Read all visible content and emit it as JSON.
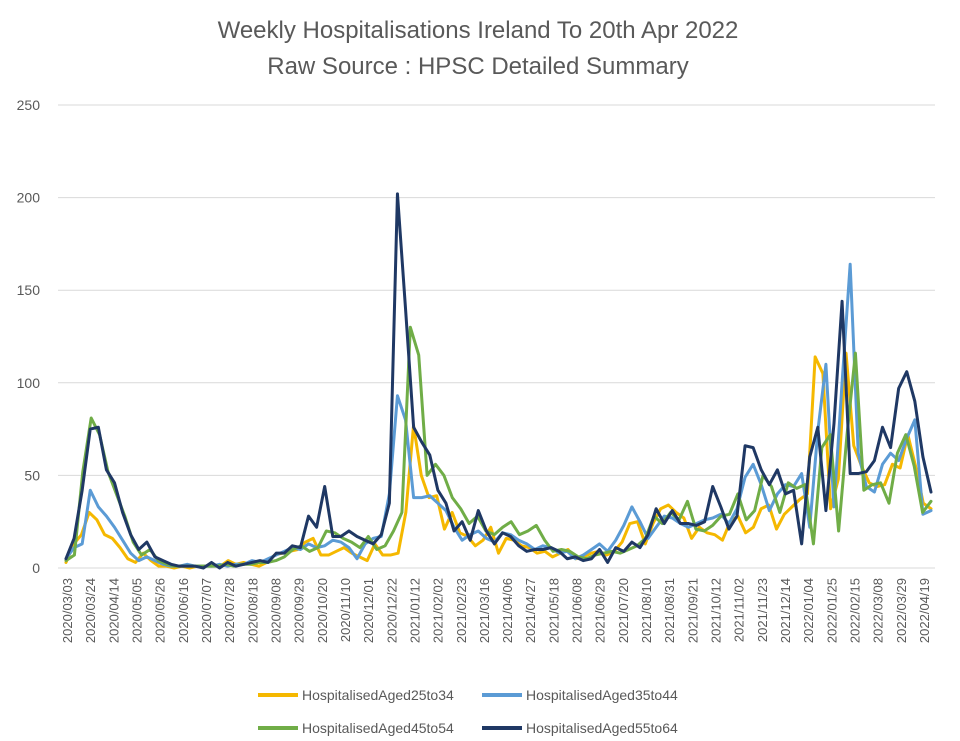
{
  "chart_data": {
    "type": "line",
    "title": "Weekly Hospitalisations Ireland To 20th Apr 2022",
    "subtitle": "Raw Source : HPSC Detailed Summary",
    "xlabel": "",
    "ylabel": "",
    "ylim": [
      0,
      250
    ],
    "y_ticks": [
      0,
      50,
      100,
      150,
      200,
      250
    ],
    "grid": true,
    "legend_position": "bottom",
    "x_tick_labels": [
      "2020/03/03",
      "2020/03/24",
      "2020/04/14",
      "2020/05/05",
      "2020/05/26",
      "2020/06/16",
      "2020/07/07",
      "2020/07/28",
      "2020/08/18",
      "2020/09/08",
      "2020/09/29",
      "2020/10/20",
      "2020/11/10",
      "2020/12/01",
      "2020/12/22",
      "2021/01/12",
      "2021/02/02",
      "2021/02/23",
      "2021/03/16",
      "2021/04/06",
      "2021/04/27",
      "2021/05/18",
      "2021/06/08",
      "2021/06/29",
      "2021/07/20",
      "2021/08/10",
      "2021/08/31",
      "2021/09/21",
      "2021/10/12",
      "2021/11/02",
      "2021/11/23",
      "2021/12/14",
      "2022/01/04",
      "2022/01/25",
      "2022/02/15",
      "2022/03/08",
      "2022/03/29",
      "2022/04/19"
    ],
    "series": [
      {
        "name": "HospitalisedAged25to34",
        "color": "#f5b800",
        "values": [
          3,
          13,
          18,
          30,
          26,
          18,
          16,
          11,
          5,
          3,
          8,
          4,
          1,
          1,
          0,
          1,
          0,
          1,
          1,
          2,
          1,
          4,
          2,
          3,
          2,
          1,
          3,
          7,
          8,
          9,
          10,
          14,
          16,
          7,
          7,
          9,
          11,
          8,
          6,
          4,
          13,
          7,
          7,
          8,
          30,
          77,
          50,
          38,
          39,
          21,
          30,
          19,
          17,
          12,
          15,
          22,
          8,
          16,
          15,
          12,
          11,
          8,
          9,
          6,
          8,
          10,
          5,
          6,
          8,
          9,
          7,
          9,
          14,
          24,
          25,
          13,
          24,
          32,
          34,
          30,
          27,
          16,
          22,
          19,
          18,
          15,
          25,
          28,
          19,
          22,
          32,
          34,
          21,
          29,
          33,
          37,
          40,
          114,
          105,
          32,
          48,
          116,
          66,
          55,
          46,
          44,
          45,
          56,
          54,
          72,
          55,
          35,
          32
        ],
        "legend_label": "HospitalisedAged25to34"
      },
      {
        "name": "HospitalisedAged35to44",
        "color": "#5b9bd5",
        "values": [
          5,
          11,
          13,
          42,
          33,
          28,
          22,
          15,
          8,
          4,
          6,
          4,
          2,
          1,
          1,
          2,
          1,
          1,
          1,
          2,
          1,
          2,
          2,
          4,
          3,
          5,
          7,
          9,
          11,
          10,
          13,
          11,
          12,
          15,
          14,
          11,
          5,
          13,
          16,
          17,
          40,
          93,
          80,
          38,
          38,
          39,
          35,
          31,
          22,
          15,
          18,
          20,
          16,
          14,
          19,
          18,
          15,
          13,
          10,
          12,
          11,
          8,
          9,
          5,
          7,
          10,
          13,
          9,
          15,
          23,
          33,
          25,
          16,
          22,
          28,
          27,
          24,
          22,
          24,
          26,
          27,
          29,
          24,
          32,
          49,
          56,
          45,
          31,
          40,
          45,
          44,
          51,
          22,
          74,
          110,
          33,
          100,
          164,
          62,
          44,
          41,
          56,
          62,
          58,
          70,
          80,
          29,
          31
        ],
        "legend_label": "HospitalisedAged35to44"
      },
      {
        "name": "HospitalisedAged45to54",
        "color": "#70ad47",
        "values": [
          4,
          7,
          52,
          81,
          72,
          52,
          40,
          28,
          14,
          7,
          10,
          4,
          2,
          1,
          1,
          1,
          1,
          1,
          1,
          2,
          1,
          2,
          2,
          3,
          3,
          4,
          6,
          10,
          12,
          9,
          11,
          20,
          19,
          16,
          14,
          11,
          17,
          10,
          12,
          20,
          30,
          130,
          115,
          50,
          56,
          50,
          38,
          32,
          24,
          28,
          20,
          18,
          22,
          25,
          18,
          20,
          23,
          15,
          9,
          10,
          9,
          6,
          5,
          7,
          8,
          9,
          8,
          10,
          12,
          16,
          28,
          24,
          30,
          26,
          36,
          21,
          20,
          23,
          28,
          29,
          40,
          26,
          31,
          50,
          44,
          30,
          46,
          43,
          45,
          13,
          65,
          72,
          20,
          72,
          116,
          42,
          45,
          46,
          35,
          62,
          72,
          55,
          30,
          36
        ],
        "legend_label": "HospitalisedAged45to54"
      },
      {
        "name": "HospitalisedAged55to64",
        "color": "#1f3864",
        "values": [
          5,
          16,
          42,
          75,
          76,
          53,
          46,
          30,
          18,
          10,
          14,
          6,
          4,
          2,
          1,
          1,
          1,
          0,
          3,
          0,
          3,
          1,
          2,
          3,
          4,
          3,
          8,
          8,
          12,
          11,
          28,
          22,
          44,
          17,
          17,
          20,
          17,
          15,
          13,
          18,
          35,
          202,
          140,
          76,
          68,
          61,
          42,
          35,
          20,
          25,
          15,
          31,
          20,
          13,
          19,
          17,
          12,
          9,
          10,
          10,
          11,
          9,
          5,
          6,
          4,
          5,
          10,
          3,
          11,
          9,
          14,
          11,
          18,
          32,
          24,
          31,
          24,
          24,
          23,
          25,
          44,
          33,
          21,
          28,
          66,
          65,
          53,
          45,
          53,
          40,
          42,
          13,
          60,
          76,
          31,
          78,
          144,
          51,
          51,
          52,
          58,
          76,
          65,
          97,
          106,
          90,
          60,
          41
        ],
        "legend_label": "HospitalisedAged55to64"
      }
    ]
  }
}
